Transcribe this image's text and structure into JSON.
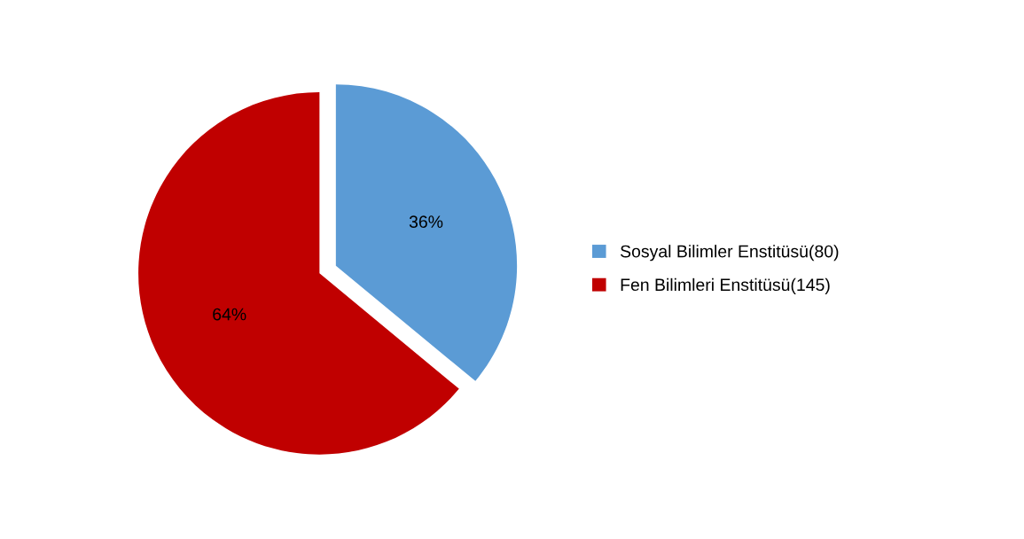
{
  "chart_data": {
    "type": "pie",
    "categories": [
      "Sosyal Bilimler Enstitüsü(80)",
      "Fen Bilimleri Enstitüsü(145)"
    ],
    "values": [
      36,
      64
    ],
    "colors": [
      "#5b9bd5",
      "#c00000"
    ],
    "value_labels": [
      "36%",
      "64%"
    ],
    "legend": "right"
  }
}
